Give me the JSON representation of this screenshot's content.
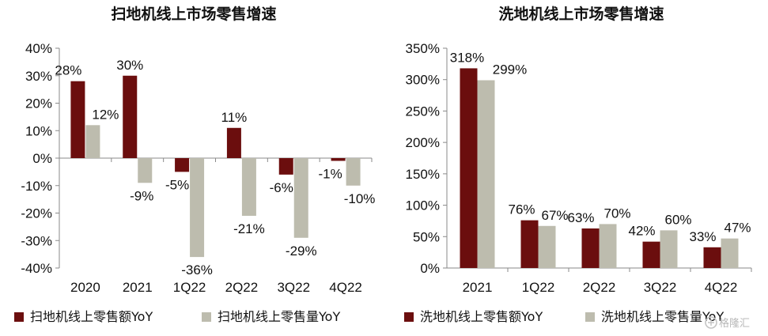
{
  "colors": {
    "amount": "#6b0e0e",
    "volume": "#bdbcae",
    "axis": "#8a8a8a"
  },
  "watermark": {
    "icon": "gelonghui-logo-icon",
    "text": "格隆汇"
  },
  "chart_data": [
    {
      "type": "bar",
      "title": "扫地机线上市场零售增速",
      "categories": [
        "2020",
        "2021",
        "1Q22",
        "2Q22",
        "3Q22",
        "4Q22"
      ],
      "ylim": [
        -40,
        40
      ],
      "yticks": [
        "40%",
        "30%",
        "20%",
        "10%",
        "0%",
        "-10%",
        "-20%",
        "-30%",
        "-40%"
      ],
      "yticks_values": [
        40,
        30,
        20,
        10,
        0,
        -10,
        -20,
        -30,
        -40
      ],
      "unit": "%",
      "grid": false,
      "legend_position": "bottom",
      "series": [
        {
          "name": "扫地机线上零售额YoY",
          "values": [
            28,
            30,
            -5,
            11,
            -6,
            -1
          ],
          "labels": [
            "28%",
            "30%",
            "-5%",
            "11%",
            "-6%",
            "-1%"
          ]
        },
        {
          "name": "扫地机线上零售量YoY",
          "values": [
            12,
            -9,
            -36,
            -21,
            -29,
            -10
          ],
          "labels": [
            "12%",
            "-9%",
            "-36%",
            "-21%",
            "-29%",
            "-10%"
          ]
        }
      ]
    },
    {
      "type": "bar",
      "title": "洗地机线上市场零售增速",
      "categories": [
        "2021",
        "1Q22",
        "2Q22",
        "3Q22",
        "4Q22"
      ],
      "ylim": [
        0,
        350
      ],
      "yticks": [
        "350%",
        "300%",
        "250%",
        "200%",
        "150%",
        "100%",
        "50%",
        "0%"
      ],
      "yticks_values": [
        350,
        300,
        250,
        200,
        150,
        100,
        50,
        0
      ],
      "unit": "%",
      "grid": false,
      "legend_position": "bottom",
      "series": [
        {
          "name": "洗地机线上零售额YoY",
          "values": [
            318,
            76,
            63,
            42,
            33
          ],
          "labels": [
            "318%",
            "76%",
            "63%",
            "42%",
            "33%"
          ]
        },
        {
          "name": "洗地机线上零售量YoY",
          "values": [
            299,
            67,
            70,
            60,
            47
          ],
          "labels": [
            "299%",
            "67%",
            "70%",
            "60%",
            "47%"
          ]
        }
      ]
    }
  ]
}
